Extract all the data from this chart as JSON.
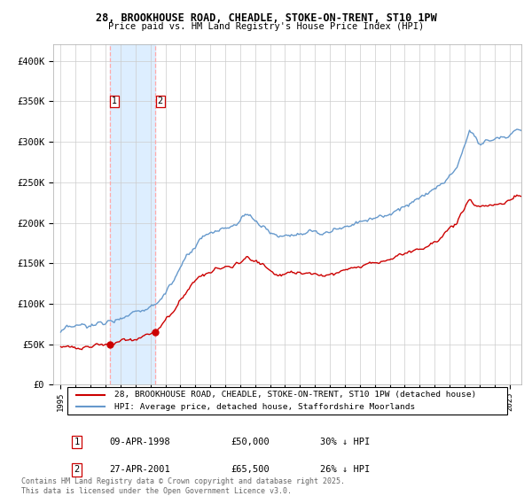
{
  "title": "28, BROOKHOUSE ROAD, CHEADLE, STOKE-ON-TRENT, ST10 1PW",
  "subtitle": "Price paid vs. HM Land Registry's House Price Index (HPI)",
  "legend_line1": "28, BROOKHOUSE ROAD, CHEADLE, STOKE-ON-TRENT, ST10 1PW (detached house)",
  "legend_line2": "HPI: Average price, detached house, Staffordshire Moorlands",
  "transaction1_date": "09-APR-1998",
  "transaction1_price": "£50,000",
  "transaction1_hpi": "30% ↓ HPI",
  "transaction1_year": 1998.27,
  "transaction1_value": 50000,
  "transaction2_date": "27-APR-2001",
  "transaction2_price": "£65,500",
  "transaction2_hpi": "26% ↓ HPI",
  "transaction2_year": 2001.32,
  "transaction2_value": 65500,
  "red_color": "#cc0000",
  "blue_color": "#6699cc",
  "vline_color": "#ffaaaa",
  "highlight_color": "#ddeeff",
  "ylim_min": 0,
  "ylim_max": 420000,
  "xlim_min": 1994.5,
  "xlim_max": 2025.8,
  "footer": "Contains HM Land Registry data © Crown copyright and database right 2025.\nThis data is licensed under the Open Government Licence v3.0.",
  "yticks": [
    0,
    50000,
    100000,
    150000,
    200000,
    250000,
    300000,
    350000,
    400000
  ],
  "ytick_labels": [
    "£0",
    "£50K",
    "£100K",
    "£150K",
    "£200K",
    "£250K",
    "£300K",
    "£350K",
    "£400K"
  ]
}
